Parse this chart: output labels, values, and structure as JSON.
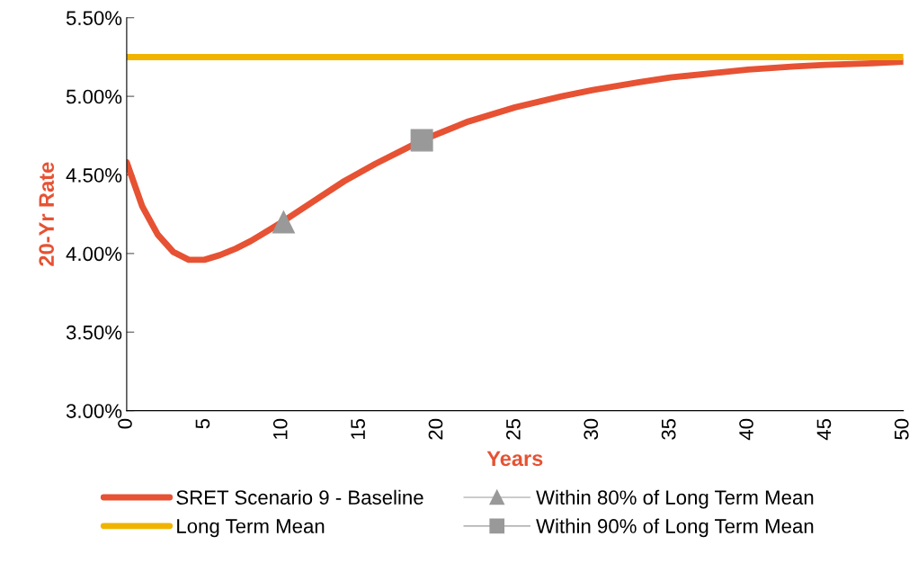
{
  "chart_data": {
    "type": "line",
    "xlabel": "Years",
    "ylabel": "20-Yr Rate",
    "xlim": [
      0,
      50
    ],
    "xticks": [
      0,
      5,
      10,
      15,
      20,
      25,
      30,
      35,
      40,
      45,
      50
    ],
    "ylim": [
      3.0,
      5.5
    ],
    "yticks": [
      {
        "value": 3.0,
        "label": "3.00%"
      },
      {
        "value": 3.5,
        "label": "3.50%"
      },
      {
        "value": 4.0,
        "label": "4.00%"
      },
      {
        "value": 4.5,
        "label": "4.50%"
      },
      {
        "value": 5.0,
        "label": "5.00%"
      },
      {
        "value": 5.5,
        "label": "5.50%"
      }
    ],
    "grid": false,
    "legend": "bottom",
    "series": [
      {
        "name": "SRET Scenario 9 - Baseline",
        "color": "#e65233",
        "marker": "none",
        "x": [
          0,
          1,
          2,
          3,
          4,
          5,
          6,
          7,
          8,
          9,
          10,
          12,
          14,
          16,
          18,
          19,
          20,
          22,
          25,
          28,
          30,
          33,
          35,
          38,
          40,
          43,
          45,
          48,
          50
        ],
        "values": [
          4.58,
          4.3,
          4.12,
          4.01,
          3.96,
          3.96,
          3.99,
          4.03,
          4.08,
          4.14,
          4.2,
          4.33,
          4.46,
          4.57,
          4.67,
          4.72,
          4.76,
          4.84,
          4.93,
          5.0,
          5.04,
          5.09,
          5.12,
          5.15,
          5.17,
          5.19,
          5.2,
          5.21,
          5.22
        ]
      },
      {
        "name": "Long Term Mean",
        "color": "#f0b400",
        "marker": "none",
        "x": [
          0,
          50
        ],
        "values": [
          5.25,
          5.25
        ]
      },
      {
        "name": "Within 80% of Long Term Mean",
        "color": "#999999",
        "marker": "triangle",
        "x": [
          10.1
        ],
        "values": [
          4.2
        ]
      },
      {
        "name": "Within 90% of Long Term Mean",
        "color": "#999999",
        "marker": "square",
        "x": [
          19
        ],
        "values": [
          4.72
        ]
      }
    ]
  }
}
